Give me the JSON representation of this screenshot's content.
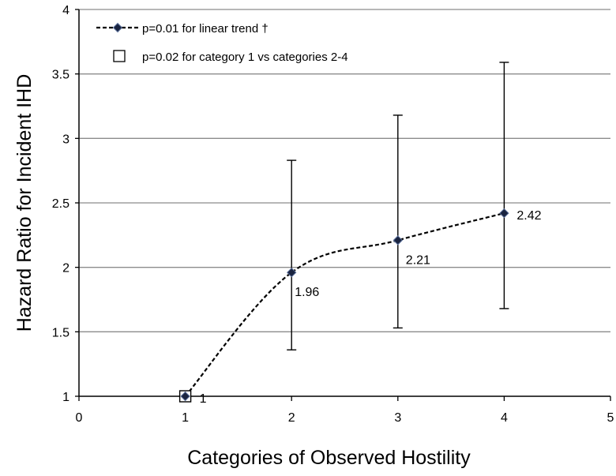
{
  "chart_data": {
    "type": "line",
    "title": "",
    "xlabel": "Categories of Observed Hostility",
    "ylabel": "Hazard Ratio for Incident IHD",
    "xlim": [
      0,
      5
    ],
    "ylim": [
      1,
      4
    ],
    "x_ticks": [
      "0",
      "1",
      "2",
      "3",
      "4",
      "5"
    ],
    "y_ticks": [
      "1",
      "1.5",
      "2",
      "2.5",
      "3",
      "3.5",
      "4"
    ],
    "grid": "horizontal",
    "legend_position": "top-left",
    "legend": [
      {
        "label": "p=0.01 for linear trend †",
        "marker": "diamond",
        "line": "dashed"
      },
      {
        "label": "p=0.02 for category 1 vs categories 2-4",
        "marker": "open-square",
        "line": "none"
      }
    ],
    "series": [
      {
        "x": [
          1,
          2,
          3,
          4
        ],
        "y": [
          1,
          1.96,
          2.21,
          2.42
        ],
        "labels": [
          "1",
          "1.96",
          "2.21",
          "2.42"
        ],
        "ci_lower": [
          1,
          1.36,
          1.53,
          1.68
        ],
        "ci_upper": [
          1,
          2.83,
          3.18,
          3.59
        ]
      }
    ],
    "highlight_point": {
      "x": 1,
      "y": 1,
      "marker": "open-square"
    },
    "colors": {
      "marker_fill": "#1a2440",
      "line": "#000000",
      "grid": "#8c8c8c"
    }
  }
}
